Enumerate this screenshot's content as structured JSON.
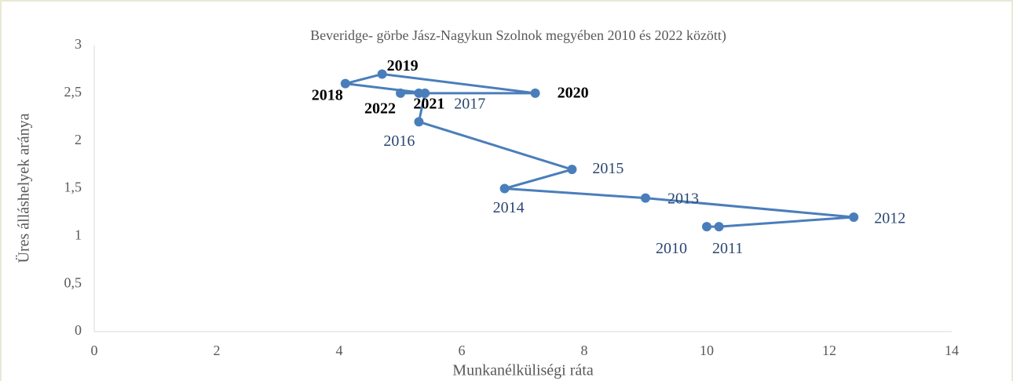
{
  "chart_data": {
    "type": "line",
    "title": "Beveridge- görbe Jász-Nagykun Szolnok megyében 2010 és 2022 között)",
    "x_label": "Munkanélküliségi ráta",
    "y_label": "Üres álláshelyek aránya",
    "x": [
      10.0,
      10.2,
      12.4,
      9.0,
      6.7,
      7.8,
      5.3,
      5.4,
      4.1,
      4.7,
      7.2,
      5.3,
      5.0
    ],
    "values": [
      1.1,
      1.1,
      1.2,
      1.4,
      1.5,
      1.7,
      2.2,
      2.5,
      2.6,
      2.7,
      2.5,
      2.5,
      2.5
    ],
    "point_labels": [
      "2010",
      "2011",
      "2012",
      "2013",
      "2014",
      "2015",
      "2016",
      "2017",
      "2018",
      "2019",
      "2020",
      "2021",
      "2022"
    ],
    "label_bold": [
      false,
      false,
      false,
      false,
      false,
      false,
      false,
      false,
      true,
      true,
      true,
      true,
      true
    ],
    "color": "#4a7ebb",
    "label_color": "#2a4670",
    "xlim": [
      0,
      14
    ],
    "xticks": [
      0,
      2,
      4,
      6,
      8,
      10,
      12,
      14
    ],
    "ylim": [
      0,
      3
    ],
    "yticks": [
      0,
      {
        "value": 0.5,
        "label": "0,5"
      },
      1,
      {
        "value": 1.5,
        "label": "1,5"
      },
      2,
      {
        "value": 2.5,
        "label": "2,5"
      },
      3
    ],
    "grid": false
  }
}
